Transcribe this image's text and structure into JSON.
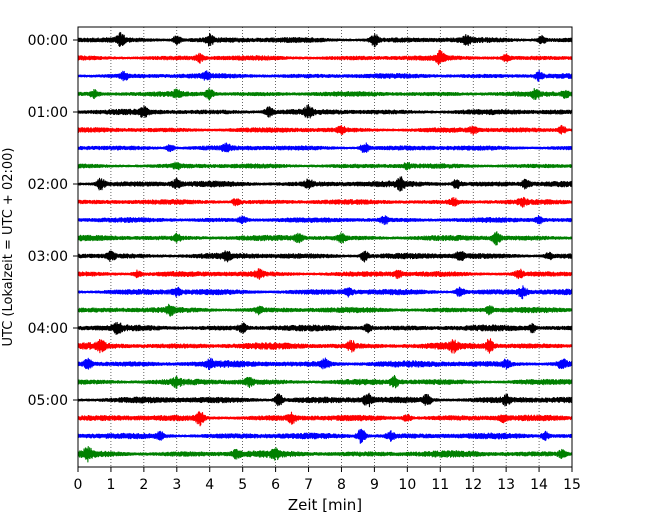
{
  "chart_data": {
    "type": "line",
    "title": "",
    "xlabel": "Zeit  [min]",
    "ylabel": "UTC (Lokalzeit = UTC + 02:00)",
    "xlim": [
      0,
      15
    ],
    "x_ticks": [
      "0",
      "1",
      "2",
      "3",
      "4",
      "5",
      "6",
      "7",
      "8",
      "9",
      "10",
      "11",
      "12",
      "13",
      "14",
      "15"
    ],
    "grid": "vertical dotted lines at each minute",
    "legend": "none",
    "colors": [
      "#000000",
      "#ff0000",
      "#0000ff",
      "#008000"
    ],
    "y_ticks": [
      {
        "label": "00:00",
        "row": 0
      },
      {
        "label": "01:00",
        "row": 4
      },
      {
        "label": "02:00",
        "row": 8
      },
      {
        "label": "03:00",
        "row": 12
      },
      {
        "label": "04:00",
        "row": 16
      },
      {
        "label": "05:00",
        "row": 20
      }
    ],
    "series": [
      {
        "start": "00:00",
        "color": "#000000",
        "amplitude": 0.35,
        "events": [
          [
            1.3,
            0.9
          ],
          [
            3.0,
            0.7
          ],
          [
            4.0,
            0.8
          ],
          [
            9.0,
            0.9
          ],
          [
            11.8,
            0.6
          ],
          [
            14.1,
            0.6
          ]
        ]
      },
      {
        "start": "00:15",
        "color": "#ff0000",
        "amplitude": 0.3,
        "events": [
          [
            3.7,
            0.6
          ],
          [
            11.0,
            0.9
          ],
          [
            13.0,
            0.5
          ]
        ]
      },
      {
        "start": "00:30",
        "color": "#0000ff",
        "amplitude": 0.3,
        "events": [
          [
            1.4,
            0.6
          ],
          [
            3.9,
            0.5
          ],
          [
            14.0,
            0.7
          ]
        ]
      },
      {
        "start": "00:45",
        "color": "#008000",
        "amplitude": 0.3,
        "events": [
          [
            0.5,
            0.5
          ],
          [
            3.0,
            0.5
          ],
          [
            4.0,
            0.8
          ],
          [
            13.9,
            0.6
          ],
          [
            14.8,
            0.5
          ]
        ]
      },
      {
        "start": "01:00",
        "color": "#000000",
        "amplitude": 0.35,
        "events": [
          [
            2.0,
            0.7
          ],
          [
            5.8,
            0.7
          ],
          [
            7.0,
            0.8
          ]
        ]
      },
      {
        "start": "01:15",
        "color": "#ff0000",
        "amplitude": 0.3,
        "events": [
          [
            8.0,
            0.5
          ],
          [
            12.0,
            0.5
          ],
          [
            14.7,
            0.6
          ]
        ]
      },
      {
        "start": "01:30",
        "color": "#0000ff",
        "amplitude": 0.3,
        "events": [
          [
            2.8,
            0.5
          ],
          [
            4.5,
            0.5
          ],
          [
            8.7,
            0.8
          ]
        ]
      },
      {
        "start": "01:45",
        "color": "#008000",
        "amplitude": 0.28,
        "events": [
          [
            3.0,
            0.4
          ],
          [
            10.0,
            0.4
          ]
        ]
      },
      {
        "start": "02:00",
        "color": "#000000",
        "amplitude": 0.4,
        "events": [
          [
            0.7,
            1.0
          ],
          [
            3.0,
            0.7
          ],
          [
            7.0,
            0.6
          ],
          [
            9.8,
            0.8
          ],
          [
            11.5,
            0.7
          ],
          [
            13.6,
            0.7
          ]
        ]
      },
      {
        "start": "02:15",
        "color": "#ff0000",
        "amplitude": 0.3,
        "events": [
          [
            4.8,
            0.5
          ],
          [
            11.4,
            0.6
          ],
          [
            13.5,
            0.5
          ]
        ]
      },
      {
        "start": "02:30",
        "color": "#0000ff",
        "amplitude": 0.3,
        "events": [
          [
            5.0,
            0.5
          ],
          [
            9.3,
            0.6
          ],
          [
            14.0,
            0.5
          ]
        ]
      },
      {
        "start": "02:45",
        "color": "#008000",
        "amplitude": 0.35,
        "events": [
          [
            3.0,
            0.5
          ],
          [
            6.7,
            0.6
          ],
          [
            8.0,
            0.6
          ],
          [
            12.7,
            0.9
          ]
        ]
      },
      {
        "start": "03:00",
        "color": "#000000",
        "amplitude": 0.4,
        "events": [
          [
            1.0,
            0.6
          ],
          [
            4.5,
            0.6
          ],
          [
            8.7,
            0.8
          ],
          [
            11.6,
            0.6
          ],
          [
            14.3,
            0.5
          ]
        ]
      },
      {
        "start": "03:15",
        "color": "#ff0000",
        "amplitude": 0.35,
        "events": [
          [
            1.8,
            0.5
          ],
          [
            5.5,
            0.5
          ],
          [
            9.7,
            0.5
          ],
          [
            13.4,
            0.6
          ]
        ]
      },
      {
        "start": "03:30",
        "color": "#0000ff",
        "amplitude": 0.4,
        "events": [
          [
            3.0,
            0.6
          ],
          [
            8.2,
            0.6
          ],
          [
            11.6,
            0.8
          ],
          [
            13.5,
            0.9
          ]
        ]
      },
      {
        "start": "03:45",
        "color": "#008000",
        "amplitude": 0.35,
        "events": [
          [
            2.8,
            0.6
          ],
          [
            5.5,
            0.5
          ],
          [
            12.5,
            0.6
          ]
        ]
      },
      {
        "start": "04:00",
        "color": "#000000",
        "amplitude": 0.4,
        "events": [
          [
            1.2,
            0.7
          ],
          [
            5.0,
            0.6
          ],
          [
            8.8,
            0.6
          ],
          [
            13.8,
            0.6
          ]
        ]
      },
      {
        "start": "04:15",
        "color": "#ff0000",
        "amplitude": 0.45,
        "events": [
          [
            0.7,
            0.7
          ],
          [
            8.3,
            0.8
          ],
          [
            11.4,
            0.7
          ],
          [
            12.5,
            1.0
          ]
        ]
      },
      {
        "start": "04:30",
        "color": "#0000ff",
        "amplitude": 0.45,
        "events": [
          [
            0.3,
            0.7
          ],
          [
            4.0,
            0.6
          ],
          [
            7.5,
            0.7
          ],
          [
            13.0,
            0.6
          ],
          [
            14.7,
            0.7
          ]
        ]
      },
      {
        "start": "04:45",
        "color": "#008000",
        "amplitude": 0.4,
        "events": [
          [
            3.0,
            0.6
          ],
          [
            5.2,
            0.6
          ],
          [
            9.6,
            0.8
          ]
        ]
      },
      {
        "start": "05:00",
        "color": "#000000",
        "amplitude": 0.45,
        "events": [
          [
            6.1,
            0.9
          ],
          [
            8.8,
            0.9
          ],
          [
            10.6,
            0.8
          ],
          [
            13.0,
            0.6
          ]
        ]
      },
      {
        "start": "05:15",
        "color": "#ff0000",
        "amplitude": 0.4,
        "events": [
          [
            3.7,
            1.0
          ],
          [
            6.5,
            0.7
          ],
          [
            10.0,
            0.6
          ],
          [
            12.9,
            0.5
          ]
        ]
      },
      {
        "start": "05:30",
        "color": "#0000ff",
        "amplitude": 0.4,
        "events": [
          [
            2.5,
            0.5
          ],
          [
            8.6,
            1.2
          ],
          [
            9.5,
            0.6
          ],
          [
            14.2,
            0.6
          ]
        ]
      },
      {
        "start": "05:45",
        "color": "#008000",
        "amplitude": 0.45,
        "events": [
          [
            0.3,
            0.8
          ],
          [
            4.8,
            0.6
          ],
          [
            6.0,
            0.6
          ],
          [
            14.7,
            0.5
          ]
        ]
      }
    ]
  }
}
